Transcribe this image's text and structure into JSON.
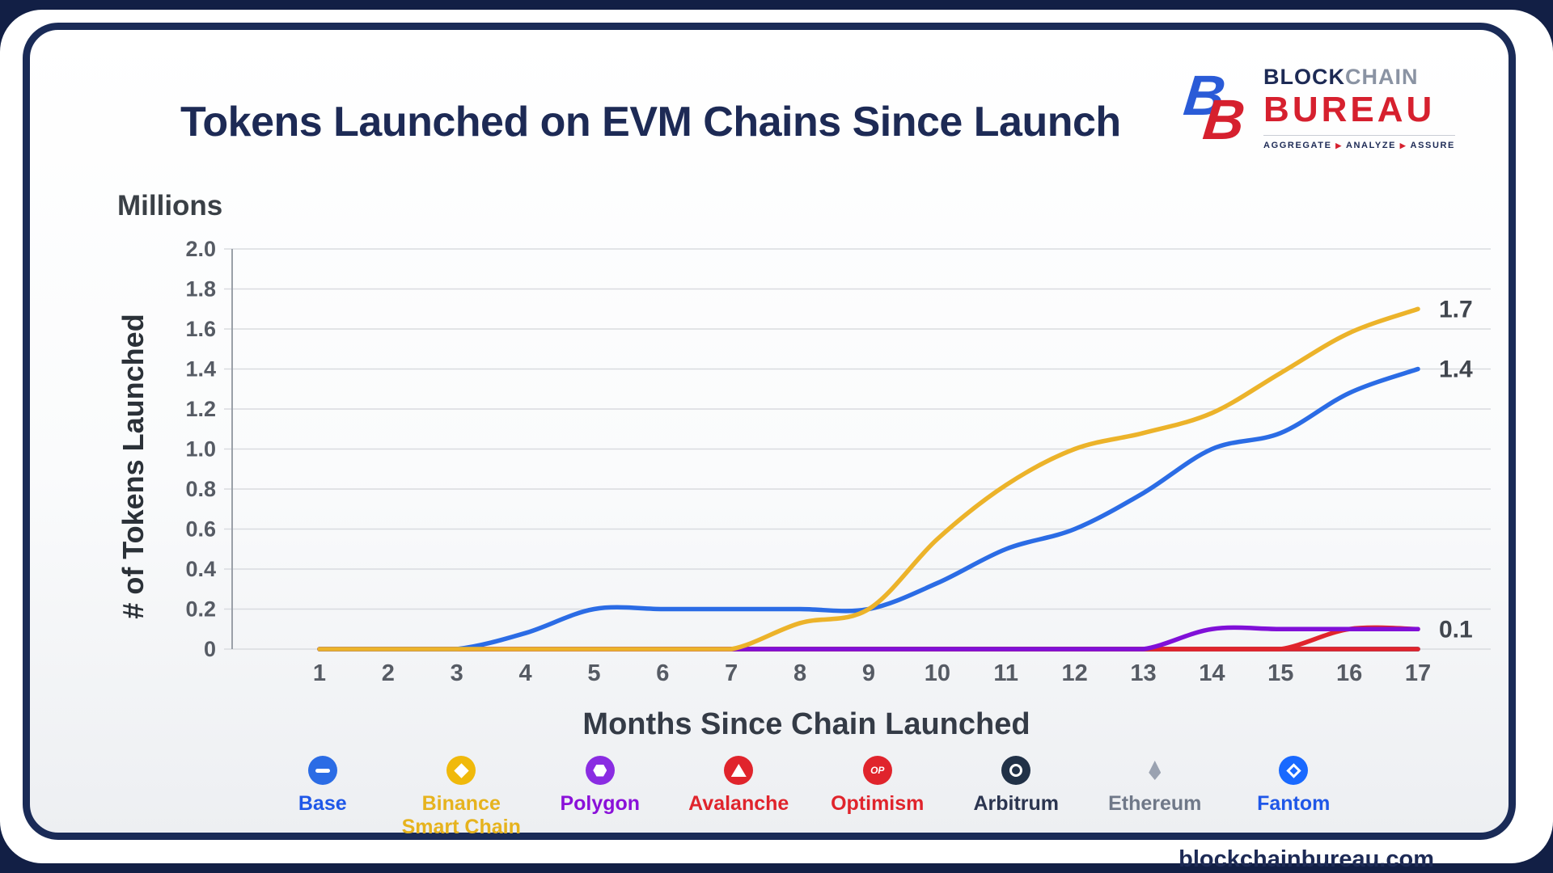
{
  "page": {
    "title": "Tokens Launched on EVM Chains Since Launch",
    "website": "blockchainbureau.com"
  },
  "logo": {
    "mark_letter": "B",
    "name_part1": "BLOCK",
    "name_part2": "CHAIN",
    "name_part3": "BUREAU",
    "tagline_parts": [
      "AGGREGATE",
      "ANALYZE",
      "ASSURE"
    ],
    "tagline_sep": "▶"
  },
  "chart_data": {
    "type": "line",
    "title": "Tokens Launched on EVM Chains Since Launch",
    "unit_label": "Millions",
    "ylabel": "# of Tokens Launched",
    "xlabel": "Months Since Chain Launched",
    "x": [
      1,
      2,
      3,
      4,
      5,
      6,
      7,
      8,
      9,
      10,
      11,
      12,
      13,
      14,
      15,
      16,
      17
    ],
    "ylim": [
      0,
      2.0
    ],
    "yticks": [
      "0",
      "0.2",
      "0.4",
      "0.6",
      "0.8",
      "1.0",
      "1.2",
      "1.4",
      "1.6",
      "1.8",
      "2.0"
    ],
    "grid": true,
    "legend_position": "bottom",
    "series": [
      {
        "name": "Fantom",
        "color": "#1f6bf2",
        "end_label": "",
        "values": [
          0,
          0,
          0,
          0,
          0,
          0,
          0,
          0,
          0,
          0,
          0,
          0,
          0,
          0,
          0,
          0,
          0
        ]
      },
      {
        "name": "Ethereum",
        "color": "#98a0b0",
        "end_label": "",
        "values": [
          0,
          0,
          0,
          0,
          0,
          0,
          0,
          0,
          0,
          0,
          0,
          0,
          0,
          0,
          0,
          0,
          0
        ]
      },
      {
        "name": "Arbitrum",
        "color": "#2d3a52",
        "end_label": "",
        "values": [
          0,
          0,
          0,
          0,
          0,
          0,
          0,
          0,
          0,
          0,
          0,
          0,
          0,
          0,
          0,
          0,
          0
        ]
      },
      {
        "name": "Optimism",
        "color": "#e0242c",
        "end_label": "",
        "values": [
          0,
          0,
          0,
          0,
          0,
          0,
          0,
          0,
          0,
          0,
          0,
          0,
          0,
          0,
          0,
          0,
          0
        ]
      },
      {
        "name": "Avalanche",
        "color": "#e0242c",
        "end_label": "",
        "values": [
          0,
          0,
          0,
          0,
          0,
          0,
          0,
          0,
          0,
          0,
          0,
          0,
          0,
          0,
          0,
          0.1,
          0.1
        ]
      },
      {
        "name": "Polygon",
        "color": "#8010d8",
        "end_label": "0.1",
        "values": [
          0,
          0,
          0,
          0,
          0,
          0,
          0,
          0,
          0,
          0,
          0,
          0,
          0,
          0.1,
          0.1,
          0.1,
          0.1
        ]
      },
      {
        "name": "Base",
        "color": "#2b6ce5",
        "end_label": "1.4",
        "values": [
          0,
          0,
          0,
          0.08,
          0.2,
          0.2,
          0.2,
          0.2,
          0.2,
          0.33,
          0.5,
          0.6,
          0.78,
          1.0,
          1.08,
          1.28,
          1.4
        ]
      },
      {
        "name": "Binance Smart Chain",
        "color": "#ecb32a",
        "end_label": "1.7",
        "values": [
          0,
          0,
          0,
          0,
          0,
          0,
          0,
          0.13,
          0.2,
          0.55,
          0.82,
          1.0,
          1.08,
          1.18,
          1.38,
          1.58,
          1.7
        ]
      }
    ]
  },
  "legend": {
    "items": [
      {
        "id": "base",
        "label": "Base",
        "color": "#1f57e8",
        "icon_bg": "#2b6ce5",
        "icon": "base-icon",
        "icon_class": "ic-base",
        "icon_text": ""
      },
      {
        "id": "binance-smart-chain",
        "label": "Binance Smart Chain",
        "color": "#e6b31e",
        "icon_bg": "#f0b90b",
        "icon": "bsc-icon",
        "icon_class": "ic-bsc",
        "icon_text": ""
      },
      {
        "id": "polygon",
        "label": "Polygon",
        "color": "#8a10d9",
        "icon_bg": "#8a2ce2",
        "icon": "polygon-icon",
        "icon_class": "ic-polygon",
        "icon_text": ""
      },
      {
        "id": "avalanche",
        "label": "Avalanche",
        "color": "#e0242c",
        "icon_bg": "#e0242c",
        "icon": "avalanche-icon",
        "icon_class": "ic-avax",
        "icon_text": ""
      },
      {
        "id": "optimism",
        "label": "Optimism",
        "color": "#e0242c",
        "icon_bg": "#e0242c",
        "icon": "optimism-icon",
        "icon_class": "ic-op",
        "icon_text": "OP"
      },
      {
        "id": "arbitrum",
        "label": "Arbitrum",
        "color": "#2b3550",
        "icon_bg": "#213147",
        "icon": "arbitrum-icon",
        "icon_class": "ic-arb",
        "icon_text": ""
      },
      {
        "id": "ethereum",
        "label": "Ethereum",
        "color": "#6f7888",
        "icon_bg": "transparent",
        "icon": "ethereum-icon",
        "icon_class": "ic-eth",
        "icon_text": ""
      },
      {
        "id": "fantom",
        "label": "Fantom",
        "color": "#1f57e8",
        "icon_bg": "#1969ff",
        "icon": "fantom-icon",
        "icon_class": "ic-fantom",
        "icon_text": ""
      }
    ]
  }
}
